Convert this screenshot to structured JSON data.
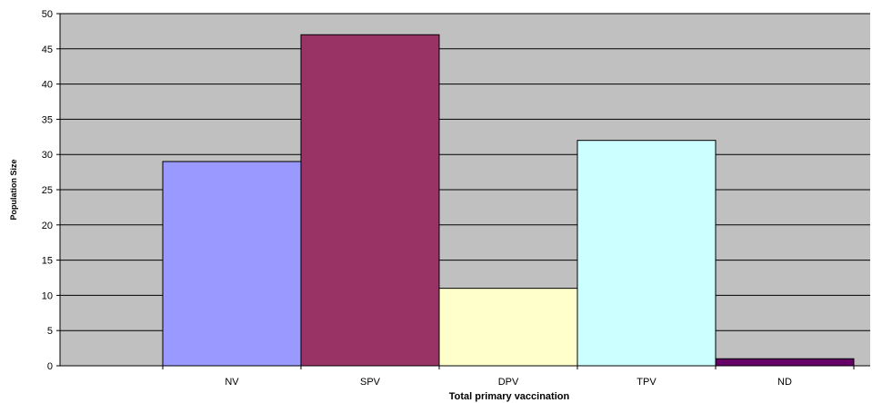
{
  "chart_data": {
    "type": "bar",
    "categories": [
      "NV",
      "SPV",
      "DPV",
      "TPV",
      "ND"
    ],
    "values": [
      29,
      47,
      11,
      32,
      1
    ],
    "bar_colors": [
      "#9999ff",
      "#993366",
      "#ffffcc",
      "#ccffff",
      "#660066"
    ],
    "xlabel": "Total primary vaccination",
    "ylabel": "Population Size",
    "ylim": [
      0,
      50
    ],
    "yticks": [
      0,
      5,
      10,
      15,
      20,
      25,
      30,
      35,
      40,
      45,
      50
    ],
    "grid": true,
    "plot_background": "#c0c0c0",
    "gridline_color": "#000000",
    "bar_outline_color": "#000000"
  }
}
